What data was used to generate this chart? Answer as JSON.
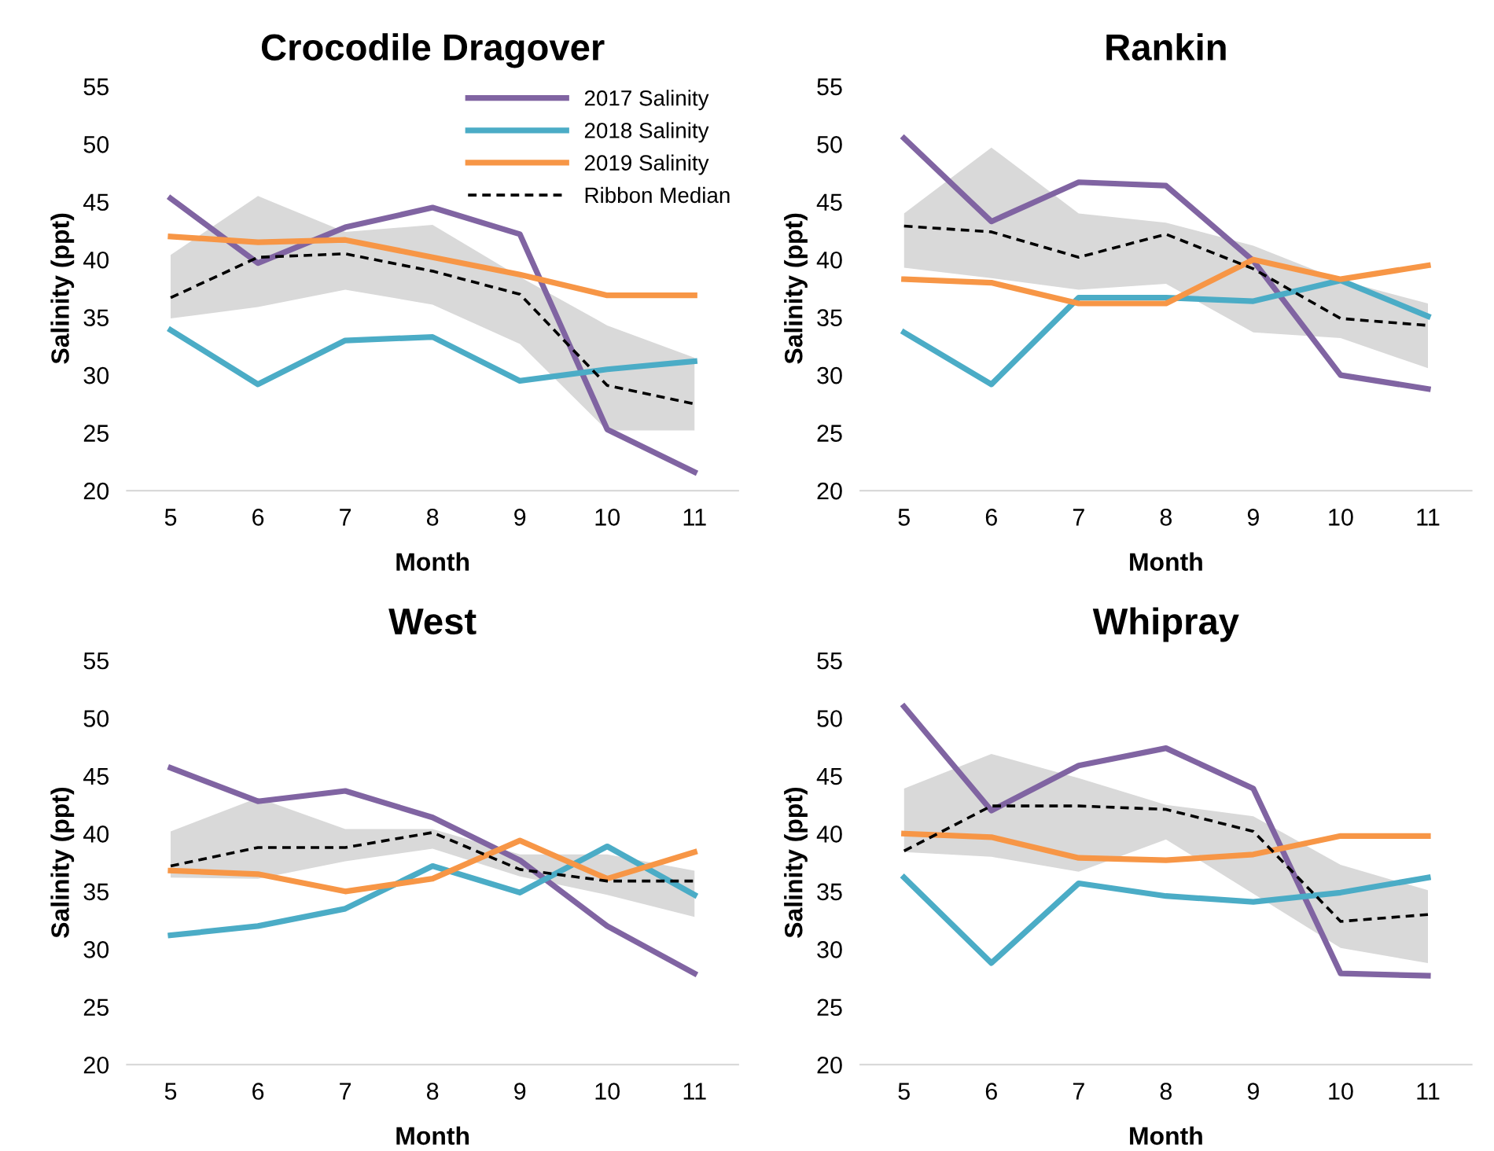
{
  "chart_data": [
    {
      "type": "line",
      "title": "Crocodile Dragover",
      "xlabel": "Month",
      "ylabel": "Salinity (ppt)",
      "categories": [
        "5",
        "6",
        "7",
        "8",
        "9",
        "10",
        "11"
      ],
      "ylim": [
        20,
        55
      ],
      "yticks": [
        20,
        25,
        30,
        35,
        40,
        45,
        50,
        55
      ],
      "grid": false,
      "legend": "top right",
      "marker": "none",
      "series": [
        {
          "name": "2017 Salinity",
          "color": "#8064a2",
          "values": [
            45.3,
            39.7,
            42.8,
            44.5,
            42.2,
            25.3,
            21.6
          ]
        },
        {
          "name": "2018 Salinity",
          "color": "#4bacc6",
          "values": [
            33.9,
            29.2,
            33.0,
            33.3,
            29.5,
            30.5,
            31.2
          ]
        },
        {
          "name": "2019 Salinity",
          "color": "#f79646",
          "values": [
            42.0,
            41.5,
            41.7,
            40.2,
            38.7,
            36.9,
            36.9
          ]
        },
        {
          "name": "Ribbon Median",
          "color": "#000000",
          "line_style": "dashed",
          "values": [
            36.7,
            40.2,
            40.5,
            39.0,
            37.0,
            29.1,
            27.5
          ],
          "lower": [
            34.9,
            35.9,
            37.4,
            36.1,
            32.7,
            25.2,
            25.2
          ],
          "upper": [
            40.4,
            45.5,
            42.4,
            43.0,
            38.5,
            34.3,
            31.5
          ]
        }
      ]
    },
    {
      "type": "line",
      "title": "Rankin",
      "xlabel": "Month",
      "ylabel": "Salinity (ppt)",
      "categories": [
        "5",
        "6",
        "7",
        "8",
        "9",
        "10",
        "11"
      ],
      "ylim": [
        20,
        55
      ],
      "yticks": [
        20,
        25,
        30,
        35,
        40,
        45,
        50,
        55
      ],
      "grid": false,
      "marker": "none",
      "series": [
        {
          "color": "#8064a2",
          "values": [
            50.5,
            43.3,
            46.7,
            46.4,
            39.9,
            30.0,
            28.8
          ]
        },
        {
          "color": "#4bacc6",
          "values": [
            33.7,
            29.2,
            36.7,
            36.7,
            36.4,
            38.2,
            35.1
          ]
        },
        {
          "color": "#f79646",
          "values": [
            38.3,
            38.0,
            36.2,
            36.2,
            40.0,
            38.3,
            39.5
          ]
        },
        {
          "color": "#000000",
          "line_style": "dashed",
          "values": [
            42.9,
            42.4,
            40.2,
            42.2,
            39.2,
            34.9,
            34.3
          ],
          "lower": [
            39.3,
            38.4,
            37.4,
            37.9,
            33.7,
            33.2,
            30.6
          ],
          "upper": [
            44.0,
            49.7,
            44.0,
            43.2,
            41.2,
            38.2,
            36.2
          ]
        }
      ]
    },
    {
      "type": "line",
      "title": "West",
      "xlabel": "Month",
      "ylabel": "Salinity (ppt)",
      "categories": [
        "5",
        "6",
        "7",
        "8",
        "9",
        "10",
        "11"
      ],
      "ylim": [
        20,
        55
      ],
      "yticks": [
        20,
        25,
        30,
        35,
        40,
        45,
        50,
        55
      ],
      "grid": false,
      "marker": "none",
      "series": [
        {
          "color": "#8064a2",
          "values": [
            45.7,
            42.8,
            43.7,
            41.4,
            37.7,
            32.0,
            27.9
          ]
        },
        {
          "color": "#4bacc6",
          "values": [
            31.2,
            32.0,
            33.5,
            37.2,
            34.9,
            38.9,
            34.7
          ]
        },
        {
          "color": "#f79646",
          "values": [
            36.8,
            36.5,
            35.0,
            36.1,
            39.4,
            36.1,
            38.4
          ]
        },
        {
          "color": "#000000",
          "line_style": "dashed",
          "values": [
            37.2,
            38.8,
            38.8,
            40.1,
            36.9,
            35.9,
            35.9
          ],
          "lower": [
            36.2,
            36.1,
            37.6,
            38.7,
            36.3,
            34.7,
            32.8
          ],
          "upper": [
            40.2,
            43.1,
            40.4,
            40.4,
            38.2,
            38.2,
            36.8
          ]
        }
      ]
    },
    {
      "type": "line",
      "title": "Whipray",
      "xlabel": "Month",
      "ylabel": "Salinity (ppt)",
      "categories": [
        "5",
        "6",
        "7",
        "8",
        "9",
        "10",
        "11"
      ],
      "ylim": [
        20,
        55
      ],
      "yticks": [
        20,
        25,
        30,
        35,
        40,
        45,
        50,
        55
      ],
      "grid": false,
      "marker": "none",
      "series": [
        {
          "color": "#8064a2",
          "values": [
            51.0,
            42.0,
            45.9,
            47.4,
            43.9,
            27.9,
            27.7
          ]
        },
        {
          "color": "#4bacc6",
          "values": [
            36.2,
            28.8,
            35.7,
            34.6,
            34.1,
            34.9,
            36.2
          ]
        },
        {
          "color": "#f79646",
          "values": [
            40.0,
            39.7,
            37.9,
            37.7,
            38.2,
            39.8,
            39.8
          ]
        },
        {
          "color": "#000000",
          "line_style": "dashed",
          "values": [
            38.5,
            42.4,
            42.4,
            42.1,
            40.2,
            32.4,
            33.0
          ],
          "lower": [
            38.4,
            38.0,
            36.7,
            39.5,
            34.8,
            30.1,
            28.8
          ],
          "upper": [
            43.9,
            46.9,
            44.8,
            42.5,
            41.5,
            37.3,
            35.1
          ]
        }
      ]
    }
  ]
}
